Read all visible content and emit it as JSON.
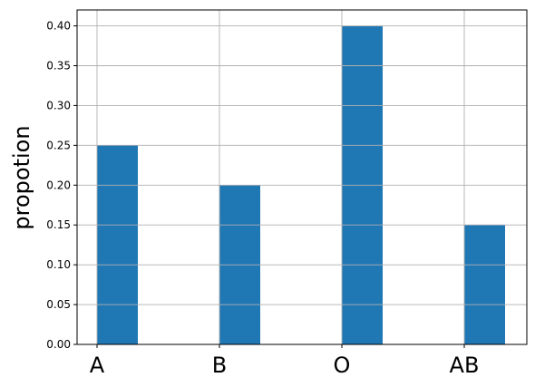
{
  "chart_data": {
    "type": "bar",
    "title": "",
    "xlabel": "",
    "ylabel": "propotion",
    "categories": [
      "A",
      "B",
      "O",
      "AB"
    ],
    "values": [
      0.25,
      0.2,
      0.4,
      0.15
    ],
    "ylim": [
      0,
      0.42
    ],
    "yticks": [
      "0.00",
      "0.05",
      "0.10",
      "0.15",
      "0.20",
      "0.25",
      "0.30",
      "0.35",
      "0.40"
    ],
    "grid": true,
    "bar_color": "#1f77b4",
    "grid_color": "#b0b0b0"
  }
}
